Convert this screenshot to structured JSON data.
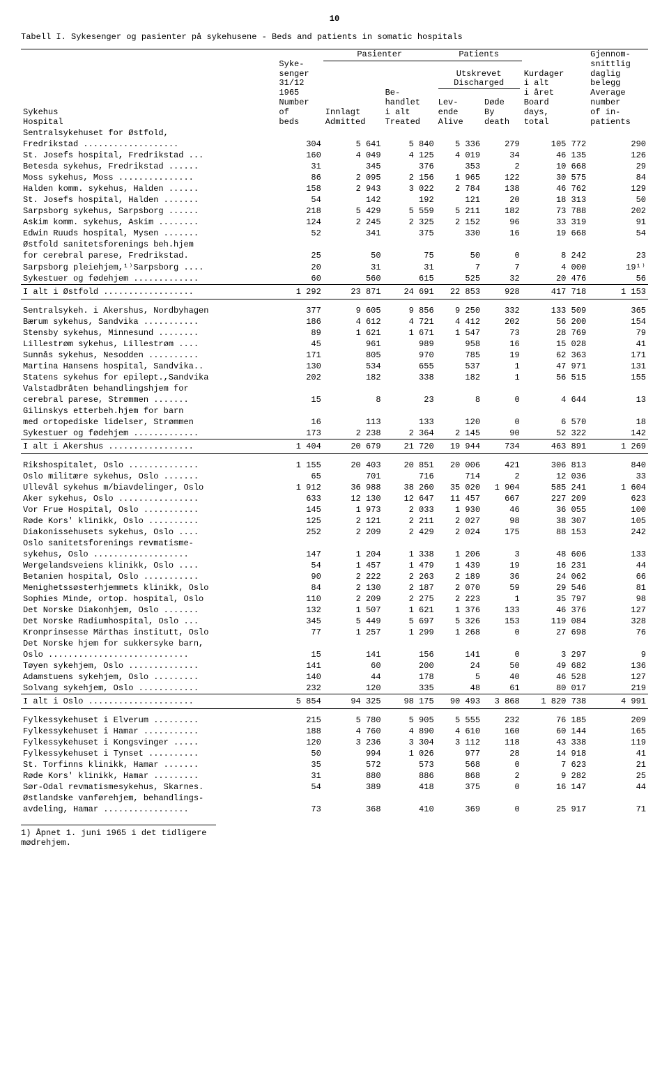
{
  "page_number": "10",
  "title": "Tabell I.  Sykesenger og pasienter på sykehusene  -  Beds and patients in somatic hospitals",
  "header": {
    "col1a": "Sykehus",
    "col1b": "Hospital",
    "col2a": "Syke-",
    "col2b": "senger",
    "col2c": "31/12",
    "col2d": "1965",
    "col2e": "Number",
    "col2f": "of",
    "col2g": "beds",
    "col3_top": "Pasienter",
    "col3a": "Innlagt",
    "col3b": "Admitted",
    "col4a": "Be-",
    "col4b": "handlet",
    "col4c": "i alt",
    "col4d": "Treated",
    "col5_top": "Patients",
    "col5a": "Utskrevet",
    "col5b": "Discharged",
    "col5c": "Lev-",
    "col5d": "ende",
    "col5e": "Alive",
    "col6a": "Døde",
    "col6b": "By",
    "col6c": "death",
    "col7a": "Kurdager",
    "col7b": "i alt",
    "col7c": "i året",
    "col7d": "Board",
    "col7e": "days,",
    "col7f": "total",
    "col8a": "Gjennom-",
    "col8b": "snittlig",
    "col8c": "daglig",
    "col8d": "belegg",
    "col8e": "Average",
    "col8f": "number",
    "col8g": "of in-",
    "col8h": "patients"
  },
  "sections": [
    {
      "rows": [
        {
          "lbl": "Sentralsykehuset for Østfold,",
          "v": [
            "",
            "",
            "",
            "",
            "",
            "",
            ""
          ]
        },
        {
          "lbl": "  Fredrikstad ...................",
          "v": [
            "304",
            "5 641",
            "5 840",
            "5 336",
            "279",
            "105 772",
            "290"
          ]
        },
        {
          "lbl": "St. Josefs hospital, Fredrikstad ...",
          "v": [
            "160",
            "4 049",
            "4 125",
            "4 019",
            "34",
            "46 135",
            "126"
          ]
        },
        {
          "lbl": "Betesda sykehus, Fredrikstad ......",
          "v": [
            "31",
            "345",
            "376",
            "353",
            "2",
            "10 668",
            "29"
          ]
        },
        {
          "lbl": "Moss sykehus, Moss ...............",
          "v": [
            "86",
            "2 095",
            "2 156",
            "1 965",
            "122",
            "30 575",
            "84"
          ]
        },
        {
          "lbl": "Halden komm. sykehus, Halden ......",
          "v": [
            "158",
            "2 943",
            "3 022",
            "2 784",
            "138",
            "46 762",
            "129"
          ]
        },
        {
          "lbl": "St. Josefs hospital, Halden .......",
          "v": [
            "54",
            "142",
            "192",
            "121",
            "20",
            "18 313",
            "50"
          ]
        },
        {
          "lbl": "Sarpsborg sykehus, Sarpsborg ......",
          "v": [
            "218",
            "5 429",
            "5 559",
            "5 211",
            "182",
            "73 788",
            "202"
          ]
        },
        {
          "lbl": "Askim komm. sykehus, Askim ........",
          "v": [
            "124",
            "2 245",
            "2 325",
            "2 152",
            "96",
            "33 319",
            "91"
          ]
        },
        {
          "lbl": "Edwin Ruuds hospital, Mysen .......",
          "v": [
            "52",
            "341",
            "375",
            "330",
            "16",
            "19 668",
            "54"
          ]
        },
        {
          "lbl": "Østfold sanitetsforenings beh.hjem",
          "v": [
            "",
            "",
            "",
            "",
            "",
            "",
            ""
          ]
        },
        {
          "lbl": "  for cerebral parese, Fredrikstad.",
          "v": [
            "25",
            "50",
            "75",
            "50",
            "0",
            "8 242",
            "23"
          ]
        },
        {
          "lbl": "Sarpsborg pleiehjem,¹⁾Sarpsborg ....",
          "v": [
            "20",
            "31",
            "31",
            "7",
            "7",
            "4 000",
            "19¹⁾"
          ]
        },
        {
          "lbl": "Sykestuer og fødehjem .............",
          "v": [
            "60",
            "560",
            "615",
            "525",
            "32",
            "20 476",
            "56"
          ]
        }
      ],
      "sum": {
        "lbl": "I alt i Østfold ..................",
        "v": [
          "1 292",
          "23 871",
          "24 691",
          "22 853",
          "928",
          "417 718",
          "1 153"
        ]
      }
    },
    {
      "rows": [
        {
          "lbl": "Sentralsykeh. i Akershus, Nordbyhagen",
          "v": [
            "377",
            "9 605",
            "9 856",
            "9 250",
            "332",
            "133 509",
            "365"
          ]
        },
        {
          "lbl": "Bærum sykehus, Sandvika ...........",
          "v": [
            "186",
            "4 612",
            "4 721",
            "4 412",
            "202",
            "56 200",
            "154"
          ]
        },
        {
          "lbl": "Stensby sykehus, Minnesund ........",
          "v": [
            "89",
            "1 621",
            "1 671",
            "1 547",
            "73",
            "28 769",
            "79"
          ]
        },
        {
          "lbl": "Lillestrøm sykehus, Lillestrøm ....",
          "v": [
            "45",
            "961",
            "989",
            "958",
            "16",
            "15 028",
            "41"
          ]
        },
        {
          "lbl": "Sunnås sykehus, Nesodden ..........",
          "v": [
            "171",
            "805",
            "970",
            "785",
            "19",
            "62 363",
            "171"
          ]
        },
        {
          "lbl": "Martina Hansens hospital, Sandvika..",
          "v": [
            "130",
            "534",
            "655",
            "537",
            "1",
            "47 971",
            "131"
          ]
        },
        {
          "lbl": "Statens sykehus for epilept.,Sandvika",
          "v": [
            "202",
            "182",
            "338",
            "182",
            "1",
            "56 515",
            "155"
          ]
        },
        {
          "lbl": "Valstadbråten behandlingshjem for",
          "v": [
            "",
            "",
            "",
            "",
            "",
            "",
            ""
          ]
        },
        {
          "lbl": "  cerebral parese, Strømmen .......",
          "v": [
            "15",
            "8",
            "23",
            "8",
            "0",
            "4 644",
            "13"
          ]
        },
        {
          "lbl": "Gilinskys etterbeh.hjem for barn",
          "v": [
            "",
            "",
            "",
            "",
            "",
            "",
            ""
          ]
        },
        {
          "lbl": "  med ortopediske lidelser, Strømmen",
          "v": [
            "16",
            "113",
            "133",
            "120",
            "0",
            "6 570",
            "18"
          ]
        },
        {
          "lbl": "Sykestuer og fødehjem .............",
          "v": [
            "173",
            "2 238",
            "2 364",
            "2 145",
            "90",
            "52 322",
            "142"
          ]
        }
      ],
      "sum": {
        "lbl": "I alt i Akershus .................",
        "v": [
          "1 404",
          "20 679",
          "21 720",
          "19 944",
          "734",
          "463 891",
          "1 269"
        ]
      }
    },
    {
      "rows": [
        {
          "lbl": "Rikshospitalet, Oslo ..............",
          "v": [
            "1 155",
            "20 403",
            "20 851",
            "20 006",
            "421",
            "306 813",
            "840"
          ]
        },
        {
          "lbl": "Oslo militære sykehus, Oslo .......",
          "v": [
            "65",
            "701",
            "716",
            "714",
            "2",
            "12 036",
            "33"
          ]
        },
        {
          "lbl": "Ullevål sykehus m/biavdelinger, Oslo",
          "v": [
            "1 912",
            "36 988",
            "38 260",
            "35 020",
            "1 904",
            "585 241",
            "1 604"
          ]
        },
        {
          "lbl": "Aker sykehus, Oslo ................",
          "v": [
            "633",
            "12 130",
            "12 647",
            "11 457",
            "667",
            "227 209",
            "623"
          ]
        },
        {
          "lbl": "Vor Frue Hospital, Oslo ...........",
          "v": [
            "145",
            "1 973",
            "2 033",
            "1 930",
            "46",
            "36 055",
            "100"
          ]
        },
        {
          "lbl": "Røde Kors' klinikk, Oslo ..........",
          "v": [
            "125",
            "2 121",
            "2 211",
            "2 027",
            "98",
            "38 307",
            "105"
          ]
        },
        {
          "lbl": "Diakonissehusets sykehus, Oslo ....",
          "v": [
            "252",
            "2 209",
            "2 429",
            "2 024",
            "175",
            "88 153",
            "242"
          ]
        },
        {
          "lbl": "Oslo sanitetsforenings revmatisme-",
          "v": [
            "",
            "",
            "",
            "",
            "",
            "",
            ""
          ]
        },
        {
          "lbl": "  sykehus, Oslo ...................",
          "v": [
            "147",
            "1 204",
            "1 338",
            "1 206",
            "3",
            "48 606",
            "133"
          ]
        },
        {
          "lbl": "Wergelandsveiens klinikk, Oslo ....",
          "v": [
            "54",
            "1 457",
            "1 479",
            "1 439",
            "19",
            "16 231",
            "44"
          ]
        },
        {
          "lbl": "Betanien hospital, Oslo ...........",
          "v": [
            "90",
            "2 222",
            "2 263",
            "2 189",
            "36",
            "24 062",
            "66"
          ]
        },
        {
          "lbl": "Menighetssøsterhjemmets klinikk, Oslo",
          "v": [
            "84",
            "2 130",
            "2 187",
            "2 070",
            "59",
            "29 546",
            "81"
          ]
        },
        {
          "lbl": "Sophies Minde, ortop. hospital, Oslo",
          "v": [
            "110",
            "2 209",
            "2 275",
            "2 223",
            "1",
            "35 797",
            "98"
          ]
        },
        {
          "lbl": "Det Norske Diakonhjem, Oslo .......",
          "v": [
            "132",
            "1 507",
            "1 621",
            "1 376",
            "133",
            "46 376",
            "127"
          ]
        },
        {
          "lbl": "Det Norske Radiumhospital, Oslo ...",
          "v": [
            "345",
            "5 449",
            "5 697",
            "5 326",
            "153",
            "119 084",
            "328"
          ]
        },
        {
          "lbl": "Kronprinsesse Märthas institutt, Oslo",
          "v": [
            "77",
            "1 257",
            "1 299",
            "1 268",
            "0",
            "27 698",
            "76"
          ]
        },
        {
          "lbl": "Det Norske hjem for sukkersyke barn,",
          "v": [
            "",
            "",
            "",
            "",
            "",
            "",
            ""
          ]
        },
        {
          "lbl": "  Oslo ............................",
          "v": [
            "15",
            "141",
            "156",
            "141",
            "0",
            "3 297",
            "9"
          ]
        },
        {
          "lbl": "Tøyen sykehjem, Oslo ..............",
          "v": [
            "141",
            "60",
            "200",
            "24",
            "50",
            "49 682",
            "136"
          ]
        },
        {
          "lbl": "Adamstuens sykehjem, Oslo .........",
          "v": [
            "140",
            "44",
            "178",
            "5",
            "40",
            "46 528",
            "127"
          ]
        },
        {
          "lbl": "Solvang sykehjem, Oslo ............",
          "v": [
            "232",
            "120",
            "335",
            "48",
            "61",
            "80 017",
            "219"
          ]
        }
      ],
      "sum": {
        "lbl": "I alt i Oslo .....................",
        "v": [
          "5 854",
          "94 325",
          "98 175",
          "90 493",
          "3 868",
          "1 820 738",
          "4 991"
        ]
      }
    },
    {
      "rows": [
        {
          "lbl": "Fylkessykehuset i Elverum .........",
          "v": [
            "215",
            "5 780",
            "5 905",
            "5 555",
            "232",
            "76 185",
            "209"
          ]
        },
        {
          "lbl": "Fylkessykehuset i Hamar ...........",
          "v": [
            "188",
            "4 760",
            "4 890",
            "4 610",
            "160",
            "60 144",
            "165"
          ]
        },
        {
          "lbl": "Fylkessykehuset i Kongsvinger .....",
          "v": [
            "120",
            "3 236",
            "3 304",
            "3 112",
            "118",
            "43 338",
            "119"
          ]
        },
        {
          "lbl": "Fylkessykehuset i Tynset ..........",
          "v": [
            "50",
            "994",
            "1 026",
            "977",
            "28",
            "14 918",
            "41"
          ]
        },
        {
          "lbl": "St. Torfinns klinikk, Hamar .......",
          "v": [
            "35",
            "572",
            "573",
            "568",
            "0",
            "7 623",
            "21"
          ]
        },
        {
          "lbl": "Røde Kors' klinikk, Hamar .........",
          "v": [
            "31",
            "880",
            "886",
            "868",
            "2",
            "9 282",
            "25"
          ]
        },
        {
          "lbl": "Sør-Odal revmatismesykehus, Skarnes.",
          "v": [
            "54",
            "389",
            "418",
            "375",
            "0",
            "16 147",
            "44"
          ]
        },
        {
          "lbl": "Østlandske vanførehjem, behandlings-",
          "v": [
            "",
            "",
            "",
            "",
            "",
            "",
            ""
          ]
        },
        {
          "lbl": "  avdeling, Hamar .................",
          "v": [
            "73",
            "368",
            "410",
            "369",
            "0",
            "25 917",
            "71"
          ]
        }
      ]
    }
  ],
  "footnote": "1) Åpnet 1. juni 1965 i det tidligere mødrehjem."
}
